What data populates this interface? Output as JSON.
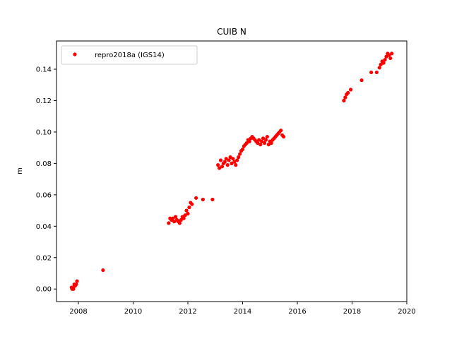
{
  "chart_data": {
    "type": "scatter",
    "title": "CUIB N",
    "xlabel": "",
    "ylabel": "m",
    "xlim": [
      2007.2,
      2020.0
    ],
    "ylim": [
      -0.008,
      0.158
    ],
    "xticks": [
      2008,
      2010,
      2012,
      2014,
      2016,
      2018,
      2020
    ],
    "yticks": [
      0.0,
      0.02,
      0.04,
      0.06,
      0.08,
      0.1,
      0.12,
      0.14
    ],
    "ytick_labels": [
      "0.00",
      "0.02",
      "0.04",
      "0.06",
      "0.08",
      "0.10",
      "0.12",
      "0.14"
    ],
    "grid": false,
    "legend_position": "top-left",
    "series": [
      {
        "name": "repro2018a (IGS14)",
        "color": "#ff0000",
        "marker": "dot",
        "points": [
          [
            2007.75,
            0.001
          ],
          [
            2007.77,
            0.0
          ],
          [
            2007.8,
            0.001
          ],
          [
            2007.82,
            0.0
          ],
          [
            2007.85,
            0.003
          ],
          [
            2007.88,
            0.002
          ],
          [
            2007.92,
            0.003
          ],
          [
            2007.95,
            0.005
          ],
          [
            2008.9,
            0.012
          ],
          [
            2011.3,
            0.042
          ],
          [
            2011.35,
            0.045
          ],
          [
            2011.4,
            0.044
          ],
          [
            2011.45,
            0.045
          ],
          [
            2011.5,
            0.043
          ],
          [
            2011.55,
            0.046
          ],
          [
            2011.6,
            0.044
          ],
          [
            2011.65,
            0.043
          ],
          [
            2011.7,
            0.042
          ],
          [
            2011.75,
            0.044
          ],
          [
            2011.8,
            0.046
          ],
          [
            2011.85,
            0.045
          ],
          [
            2011.9,
            0.047
          ],
          [
            2011.95,
            0.05
          ],
          [
            2012.0,
            0.048
          ],
          [
            2012.05,
            0.052
          ],
          [
            2012.1,
            0.055
          ],
          [
            2012.15,
            0.054
          ],
          [
            2012.3,
            0.058
          ],
          [
            2012.55,
            0.057
          ],
          [
            2012.9,
            0.057
          ],
          [
            2013.1,
            0.079
          ],
          [
            2013.15,
            0.077
          ],
          [
            2013.2,
            0.082
          ],
          [
            2013.25,
            0.078
          ],
          [
            2013.3,
            0.08
          ],
          [
            2013.35,
            0.081
          ],
          [
            2013.4,
            0.083
          ],
          [
            2013.45,
            0.079
          ],
          [
            2013.5,
            0.082
          ],
          [
            2013.55,
            0.084
          ],
          [
            2013.6,
            0.08
          ],
          [
            2013.65,
            0.083
          ],
          [
            2013.7,
            0.081
          ],
          [
            2013.75,
            0.079
          ],
          [
            2013.8,
            0.082
          ],
          [
            2013.85,
            0.084
          ],
          [
            2013.9,
            0.086
          ],
          [
            2013.95,
            0.088
          ],
          [
            2014.0,
            0.089
          ],
          [
            2014.05,
            0.091
          ],
          [
            2014.1,
            0.092
          ],
          [
            2014.15,
            0.093
          ],
          [
            2014.2,
            0.095
          ],
          [
            2014.25,
            0.094
          ],
          [
            2014.3,
            0.096
          ],
          [
            2014.35,
            0.097
          ],
          [
            2014.4,
            0.096
          ],
          [
            2014.45,
            0.095
          ],
          [
            2014.5,
            0.094
          ],
          [
            2014.55,
            0.093
          ],
          [
            2014.6,
            0.095
          ],
          [
            2014.65,
            0.092
          ],
          [
            2014.7,
            0.094
          ],
          [
            2014.75,
            0.096
          ],
          [
            2014.8,
            0.093
          ],
          [
            2014.85,
            0.095
          ],
          [
            2014.9,
            0.097
          ],
          [
            2014.95,
            0.092
          ],
          [
            2015.0,
            0.094
          ],
          [
            2015.05,
            0.093
          ],
          [
            2015.1,
            0.095
          ],
          [
            2015.15,
            0.096
          ],
          [
            2015.2,
            0.097
          ],
          [
            2015.25,
            0.098
          ],
          [
            2015.3,
            0.099
          ],
          [
            2015.35,
            0.1
          ],
          [
            2015.4,
            0.101
          ],
          [
            2015.45,
            0.098
          ],
          [
            2015.5,
            0.097
          ],
          [
            2017.7,
            0.12
          ],
          [
            2017.75,
            0.122
          ],
          [
            2017.8,
            0.124
          ],
          [
            2017.85,
            0.125
          ],
          [
            2017.95,
            0.127
          ],
          [
            2018.35,
            0.133
          ],
          [
            2018.7,
            0.138
          ],
          [
            2018.9,
            0.138
          ],
          [
            2019.0,
            0.141
          ],
          [
            2019.05,
            0.143
          ],
          [
            2019.1,
            0.145
          ],
          [
            2019.15,
            0.144
          ],
          [
            2019.2,
            0.146
          ],
          [
            2019.25,
            0.148
          ],
          [
            2019.3,
            0.15
          ],
          [
            2019.35,
            0.149
          ],
          [
            2019.4,
            0.147
          ],
          [
            2019.45,
            0.15
          ]
        ]
      }
    ]
  }
}
